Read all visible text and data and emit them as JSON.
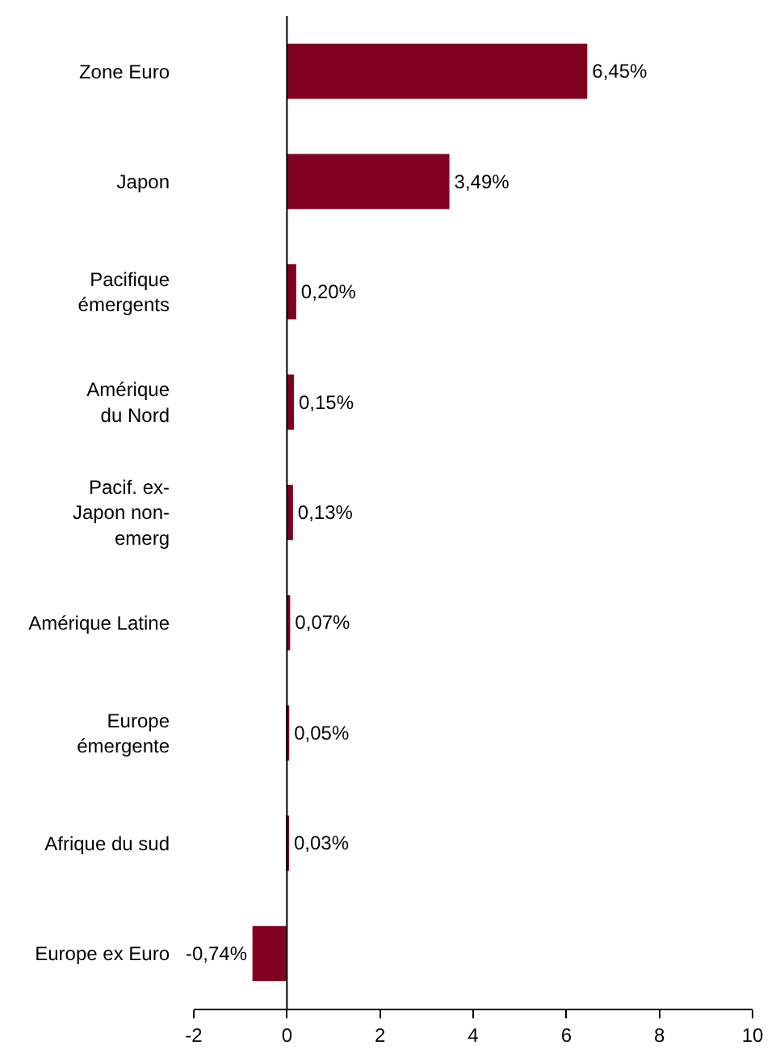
{
  "chart_data": {
    "type": "bar",
    "orientation": "horizontal",
    "categories": [
      "Zone Euro",
      "Japon",
      "Pacifique\némergents",
      "Amérique\ndu Nord",
      "Pacif. ex-\nJapon non-\nemerg",
      "Amérique Latine",
      "Europe\némergente",
      "Afrique du sud",
      "Europe ex Euro"
    ],
    "values": [
      6.45,
      3.49,
      0.2,
      0.15,
      0.13,
      0.07,
      0.05,
      0.03,
      -0.74
    ],
    "value_labels": [
      "6,45%",
      "3,49%",
      "0,20%",
      "0,15%",
      "0,13%",
      "0,07%",
      "0,05%",
      "0,03%",
      "-0,74%"
    ],
    "color": "#800020",
    "xlim": [
      -2,
      10
    ],
    "xticks": [
      -2,
      0,
      2,
      4,
      6,
      8,
      10
    ],
    "ref_lines": [
      {
        "axis": "x",
        "value": 0,
        "color": "#000000"
      }
    ],
    "legend": false
  }
}
